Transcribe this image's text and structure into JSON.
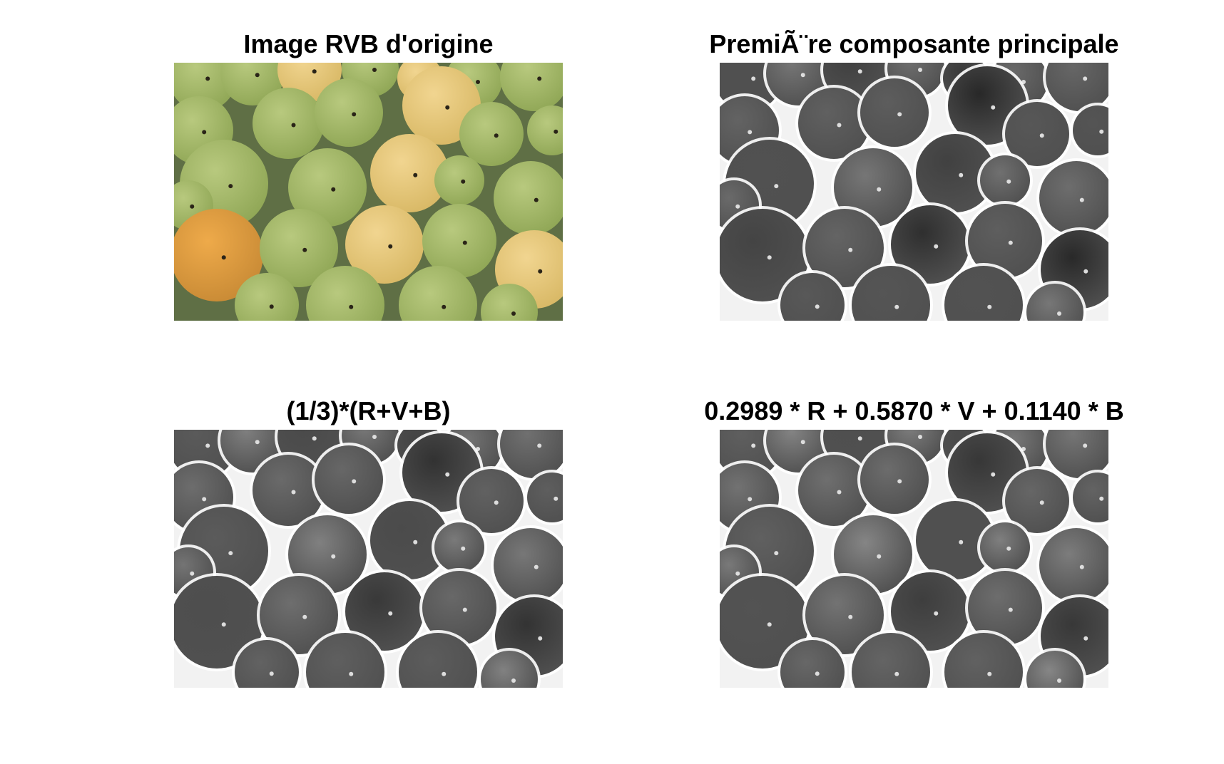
{
  "figure": {
    "panels": [
      {
        "title": "Image RVB d'origine",
        "image": "original-rgb-fruit-photo",
        "mode": "color"
      },
      {
        "title": "PremiÃ¨re composante principale",
        "image": "first-principal-component-gray",
        "mode": "gray-pca"
      },
      {
        "title": "(1/3)*(R+V+B)",
        "image": "average-gray",
        "mode": "gray-avg"
      },
      {
        "title": "0.2989 * R + 0.5870 * V + 0.1140 * B",
        "image": "luminance-gray",
        "mode": "gray-lum"
      }
    ]
  }
}
